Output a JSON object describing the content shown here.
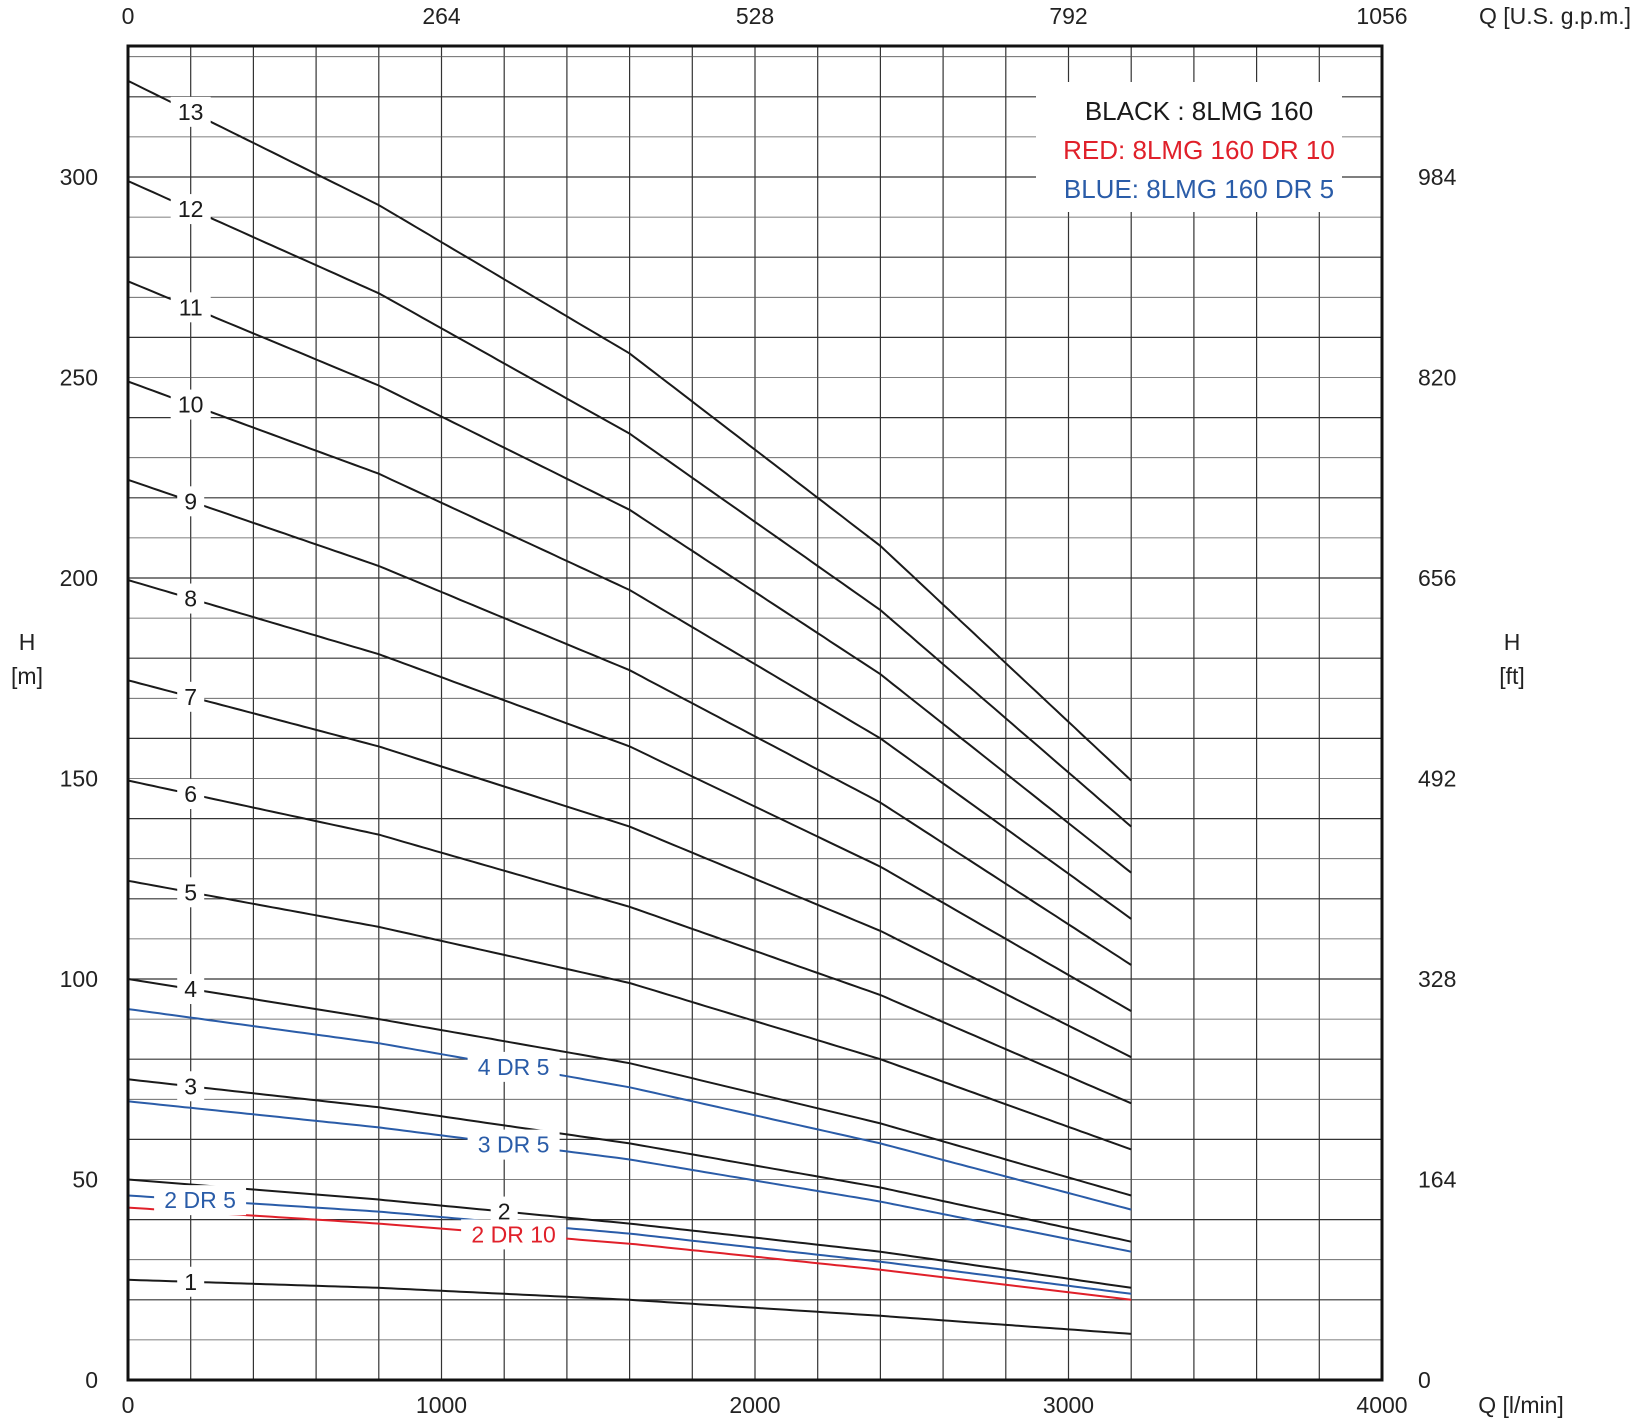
{
  "chart_data": {
    "type": "line",
    "legend": {
      "placement": "top-right",
      "entries": [
        {
          "text": "BLACK : 8LMG 160",
          "color": "#1a1a1a"
        },
        {
          "text": "RED: 8LMG 160 DR 10",
          "color": "#e0202a"
        },
        {
          "text": "BLUE: 8LMG 160 DR 5",
          "color": "#2a5ca8"
        }
      ]
    },
    "axes": {
      "x_bottom": {
        "label": "Q [l/min]",
        "range": [
          0,
          4000
        ],
        "ticks": [
          "0",
          "1000",
          "2000",
          "3000",
          "4000"
        ]
      },
      "x_top": {
        "label": "Q [U.S. g.p.m.]",
        "ticks": [
          "0",
          "264",
          "528",
          "792",
          "1056"
        ]
      },
      "y_left": {
        "label": "H",
        "unit": "[m]",
        "range": [
          0,
          340
        ],
        "ticks": [
          "0",
          "50",
          "100",
          "150",
          "200",
          "250",
          "300"
        ]
      },
      "y_right": {
        "label": "H",
        "unit": "[ft]",
        "ticks": [
          "0",
          "164",
          "328",
          "492",
          "656",
          "820",
          "984"
        ]
      },
      "grid": true
    },
    "series": [
      {
        "name": "1",
        "color": "#1a1a1a",
        "label_q": 200,
        "points": [
          [
            0,
            25
          ],
          [
            800,
            23
          ],
          [
            1600,
            20
          ],
          [
            2400,
            16
          ],
          [
            3200,
            11.5
          ]
        ]
      },
      {
        "name": "2",
        "color": "#1a1a1a",
        "label_q": 1200,
        "points": [
          [
            0,
            50
          ],
          [
            800,
            45
          ],
          [
            1600,
            39
          ],
          [
            2400,
            32
          ],
          [
            3200,
            23
          ]
        ]
      },
      {
        "name": "3",
        "color": "#1a1a1a",
        "label_q": 200,
        "points": [
          [
            0,
            75
          ],
          [
            800,
            68
          ],
          [
            1600,
            59
          ],
          [
            2400,
            48
          ],
          [
            3200,
            34.5
          ]
        ]
      },
      {
        "name": "4",
        "color": "#1a1a1a",
        "label_q": 200,
        "points": [
          [
            0,
            100
          ],
          [
            800,
            90
          ],
          [
            1600,
            79
          ],
          [
            2400,
            64
          ],
          [
            3200,
            46
          ]
        ]
      },
      {
        "name": "5",
        "color": "#1a1a1a",
        "label_q": 200,
        "points": [
          [
            0,
            124.5
          ],
          [
            800,
            113
          ],
          [
            1600,
            99
          ],
          [
            2400,
            80
          ],
          [
            3200,
            57.5
          ]
        ]
      },
      {
        "name": "6",
        "color": "#1a1a1a",
        "label_q": 200,
        "points": [
          [
            0,
            149.5
          ],
          [
            800,
            136
          ],
          [
            1600,
            118
          ],
          [
            2400,
            96
          ],
          [
            3200,
            69
          ]
        ]
      },
      {
        "name": "7",
        "color": "#1a1a1a",
        "label_q": 200,
        "points": [
          [
            0,
            174.5
          ],
          [
            800,
            158
          ],
          [
            1600,
            138
          ],
          [
            2400,
            112
          ],
          [
            3200,
            80.5
          ]
        ]
      },
      {
        "name": "8",
        "color": "#1a1a1a",
        "label_q": 200,
        "points": [
          [
            0,
            199.5
          ],
          [
            800,
            181
          ],
          [
            1600,
            158
          ],
          [
            2400,
            128
          ],
          [
            3200,
            92
          ]
        ]
      },
      {
        "name": "9",
        "color": "#1a1a1a",
        "label_q": 200,
        "points": [
          [
            0,
            224.5
          ],
          [
            800,
            203
          ],
          [
            1600,
            177
          ],
          [
            2400,
            144
          ],
          [
            3200,
            103.5
          ]
        ]
      },
      {
        "name": "10",
        "color": "#1a1a1a",
        "label_q": 200,
        "points": [
          [
            0,
            249
          ],
          [
            800,
            226
          ],
          [
            1600,
            197
          ],
          [
            2400,
            160
          ],
          [
            3200,
            115
          ]
        ]
      },
      {
        "name": "11",
        "color": "#1a1a1a",
        "label_q": 200,
        "points": [
          [
            0,
            274
          ],
          [
            800,
            248
          ],
          [
            1600,
            217
          ],
          [
            2400,
            176
          ],
          [
            3200,
            126.5
          ]
        ]
      },
      {
        "name": "12",
        "color": "#1a1a1a",
        "label_q": 200,
        "points": [
          [
            0,
            299
          ],
          [
            800,
            271
          ],
          [
            1600,
            236
          ],
          [
            2400,
            192
          ],
          [
            3200,
            138
          ]
        ]
      },
      {
        "name": "13",
        "color": "#1a1a1a",
        "label_q": 200,
        "points": [
          [
            0,
            324
          ],
          [
            800,
            293
          ],
          [
            1600,
            256
          ],
          [
            2400,
            208
          ],
          [
            3200,
            149.5
          ]
        ]
      },
      {
        "name": "2 DR 5",
        "color": "#2a5ca8",
        "label_q": 230,
        "points": [
          [
            0,
            46
          ],
          [
            800,
            42
          ],
          [
            1600,
            36.5
          ],
          [
            2400,
            29.5
          ],
          [
            3200,
            21.5
          ]
        ]
      },
      {
        "name": "3 DR 5",
        "color": "#2a5ca8",
        "label_q": 1230,
        "points": [
          [
            0,
            69.5
          ],
          [
            800,
            63
          ],
          [
            1600,
            55
          ],
          [
            2400,
            44.5
          ],
          [
            3200,
            32
          ]
        ]
      },
      {
        "name": "4 DR 5",
        "color": "#2a5ca8",
        "label_q": 1230,
        "points": [
          [
            0,
            92.5
          ],
          [
            800,
            84
          ],
          [
            1600,
            73
          ],
          [
            2400,
            59
          ],
          [
            3200,
            42.5
          ]
        ]
      },
      {
        "name": "2 DR 10",
        "color": "#e0202a",
        "label_q": 1230,
        "points": [
          [
            0,
            43
          ],
          [
            800,
            39
          ],
          [
            1600,
            34
          ],
          [
            2400,
            27.5
          ],
          [
            3200,
            20
          ]
        ]
      }
    ]
  }
}
